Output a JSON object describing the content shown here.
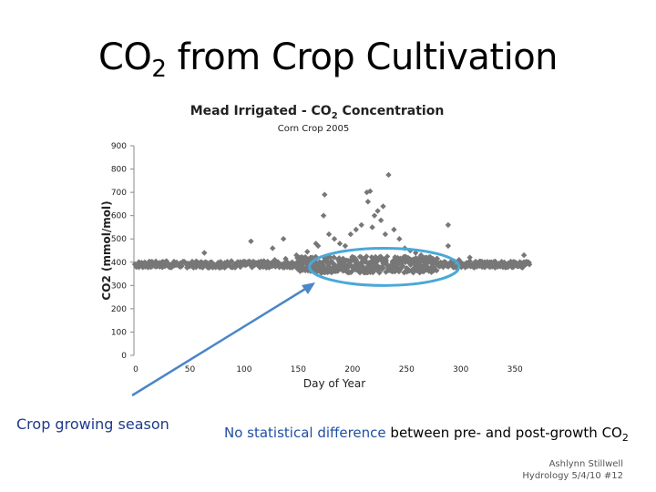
{
  "slide": {
    "title_main": "CO",
    "title_sub": "2",
    "title_rest": " from Crop Cultivation",
    "left_caption": "Crop growing season",
    "right_caption_highlight": "No statistical difference",
    "right_caption_rest": " between pre- and post-growth CO",
    "right_caption_sub": "2",
    "credit_line1": "Ashlynn Stillwell",
    "credit_line2": "Hydrology 5/4/10 #12"
  },
  "colors": {
    "marker": "#777777",
    "ellipse": "#4aa8d8",
    "arrow": "#4a86c8",
    "axis": "#888888"
  },
  "chart_data": {
    "type": "scatter",
    "title": "Mead Irrigated - CO2 Concentration",
    "title_main": "Mead Irrigated - CO",
    "title_sub": "2",
    "title_rest": " Concentration",
    "subtitle": "Corn Crop 2005",
    "xlabel": "Day of Year",
    "ylabel": "CO2 (mmol/mol)",
    "xlim": [
      0,
      370
    ],
    "ylim": [
      0,
      900
    ],
    "x_ticks": [
      0,
      50,
      100,
      150,
      200,
      250,
      300,
      350
    ],
    "y_ticks": [
      0,
      100,
      200,
      300,
      400,
      500,
      600,
      700,
      800,
      900
    ],
    "grid": false,
    "series": [
      {
        "name": "CO2 concentration",
        "baseline": 390,
        "x": [
          2,
          10,
          20,
          30,
          40,
          50,
          60,
          65,
          70,
          80,
          90,
          100,
          108,
          110,
          120,
          128,
          130,
          138,
          140,
          150,
          160,
          168,
          170,
          175,
          176,
          180,
          185,
          190,
          195,
          200,
          205,
          210,
          215,
          216,
          218,
          220,
          222,
          225,
          228,
          230,
          232,
          235,
          240,
          245,
          250,
          255,
          260,
          265,
          270,
          280,
          290,
          290,
          300,
          310,
          310,
          320,
          330,
          340,
          350,
          360,
          365
        ],
        "y": [
          385,
          400,
          395,
          405,
          392,
          395,
          390,
          440,
          398,
          402,
          405,
          398,
          490,
          400,
          405,
          460,
          410,
          500,
          415,
          430,
          445,
          480,
          470,
          600,
          690,
          520,
          500,
          480,
          470,
          520,
          540,
          560,
          700,
          660,
          705,
          550,
          600,
          620,
          580,
          640,
          520,
          775,
          540,
          500,
          460,
          450,
          440,
          430,
          420,
          415,
          560,
          470,
          410,
          405,
          420,
          400,
          400,
          398,
          395,
          430,
          390
        ]
      }
    ],
    "annotations": [
      {
        "type": "ellipse",
        "label": "Crop growing season",
        "x_range": [
          162,
          300
        ],
        "y_range": [
          300,
          460
        ]
      }
    ]
  }
}
